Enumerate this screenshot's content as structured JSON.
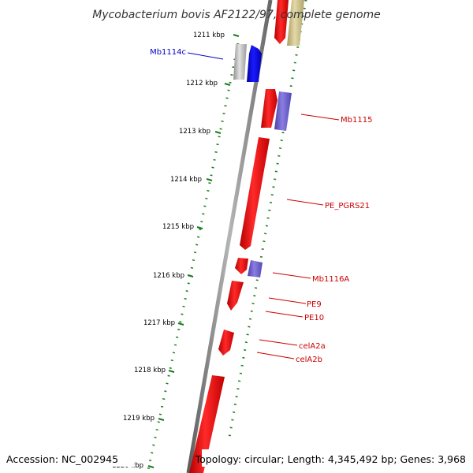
{
  "title": "Mycobacterium bovis AF2122/97, complete genome",
  "accession": "Accession: NC_002945",
  "summary": "Topology: circular; Length: 4,345,492 bp; Genes: 3,968",
  "scale_ticks": [
    "1211 kbp",
    "1212 kbp",
    "1213 kbp",
    "1214 kbp",
    "1215 kbp",
    "1216 kbp",
    "1217 kbp",
    "1218 kbp",
    "1219 kbp",
    "1220 kbp"
  ],
  "gene_labels": [
    {
      "text": "Mb1114c",
      "color": "#0000cc"
    },
    {
      "text": "Mb1115",
      "color": "#cc0000"
    },
    {
      "text": "PE_PGRS21",
      "color": "#cc0000"
    },
    {
      "text": "Mb1116A",
      "color": "#cc0000"
    },
    {
      "text": "PE9",
      "color": "#cc0000"
    },
    {
      "text": "PE10",
      "color": "#cc0000"
    },
    {
      "text": "celA2a",
      "color": "#cc0000"
    },
    {
      "text": "celA2b",
      "color": "#cc0000"
    }
  ],
  "colors": {
    "cds_forward": "#ff0000",
    "cds_reverse": "#0000ff",
    "feature_olive": "#c8bd8a",
    "feature_grey": "#bdbdbd",
    "feature_purple": "#6a5acd",
    "backbone": "#7a7a7a",
    "gc_dots": "#1a7a1a"
  }
}
